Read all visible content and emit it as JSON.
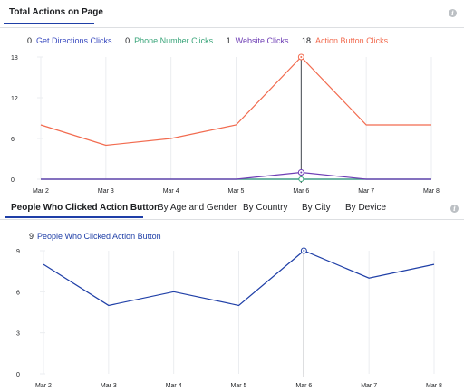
{
  "header": {
    "title": "Total Actions on Page"
  },
  "summary": [
    {
      "value": "0",
      "label": "Get Directions Clicks",
      "color": "#3b4cc0"
    },
    {
      "value": "0",
      "label": "Phone Number Clicks",
      "color": "#3aa57a"
    },
    {
      "value": "1",
      "label": "Website Clicks",
      "color": "#6f3fb5"
    },
    {
      "value": "18",
      "label": "Action Button Clicks",
      "color": "#f26b4f"
    }
  ],
  "tabs": [
    {
      "label": "People Who Clicked Action Button",
      "active": true
    },
    {
      "label": "By Age and Gender",
      "active": false
    },
    {
      "label": "By Country",
      "active": false
    },
    {
      "label": "By City",
      "active": false
    },
    {
      "label": "By Device",
      "active": false
    }
  ],
  "summary2": {
    "value": "9",
    "label": "People Who Clicked Action Button",
    "color": "#1f3fa7"
  },
  "colors": {
    "accent": "#1f3fa7",
    "grid": "#ebedf0",
    "axis_text": "#606770"
  },
  "chart_data": [
    {
      "type": "line",
      "x": [
        "Mar 2",
        "Mar 3",
        "Mar 4",
        "Mar 5",
        "Mar 6",
        "Mar 7",
        "Mar 8"
      ],
      "yticks": [
        0,
        6,
        12,
        18
      ],
      "ylim": [
        0,
        18
      ],
      "highlight_index": 4,
      "series": [
        {
          "name": "Get Directions Clicks",
          "color": "#3b4cc0",
          "values": [
            0,
            0,
            0,
            0,
            0,
            0,
            0
          ]
        },
        {
          "name": "Phone Number Clicks",
          "color": "#3aa57a",
          "values": [
            0,
            0,
            0,
            0,
            0,
            0,
            0
          ]
        },
        {
          "name": "Website Clicks",
          "color": "#6f3fb5",
          "values": [
            0,
            0,
            0,
            0,
            1,
            0,
            0
          ]
        },
        {
          "name": "Action Button Clicks",
          "color": "#f26b4f",
          "values": [
            8,
            5,
            6,
            8,
            18,
            8,
            8
          ]
        }
      ]
    },
    {
      "type": "line",
      "x": [
        "Mar 2",
        "Mar 3",
        "Mar 4",
        "Mar 5",
        "Mar 6",
        "Mar 7",
        "Mar 8"
      ],
      "yticks": [
        0,
        3,
        6,
        9
      ],
      "ylim": [
        0,
        9
      ],
      "highlight_index": 4,
      "series": [
        {
          "name": "People Who Clicked Action Button",
          "color": "#1f3fa7",
          "values": [
            8,
            5,
            6,
            5,
            9,
            7,
            8
          ]
        }
      ]
    }
  ]
}
